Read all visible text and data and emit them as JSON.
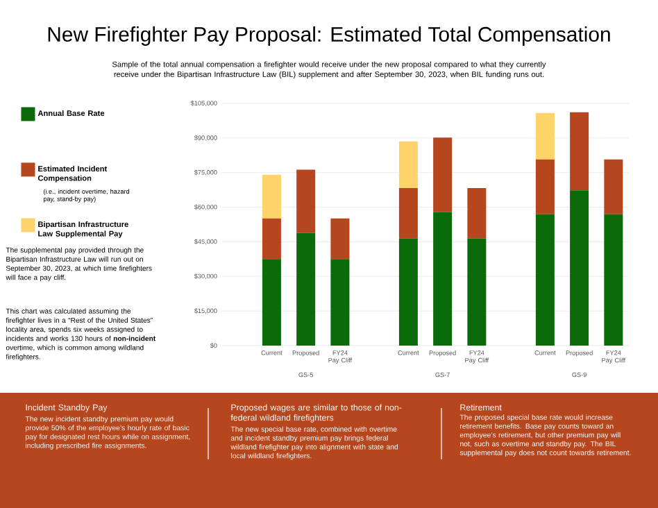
{
  "chart_data": {
    "type": "bar",
    "stacked": true,
    "title": "New Firefighter Pay Proposal: Estimated Total Compensation",
    "subtitle": "Sample of the total annual compensation a firefighter would receive under the new proposal compared to what they currently receive under the Bipartisan Infrastructure Law (BIL) supplement and after September 30, 2023, when BIL funding runs out.",
    "categories": [
      "Current",
      "Proposed",
      "FY24 Pay Cliff",
      "Current",
      "Proposed",
      "FY24 Pay Cliff",
      "Current",
      "Proposed",
      "FY24 Pay Cliff"
    ],
    "series": [
      {
        "name": "Annual Base Rate",
        "color": "#0b6b0b",
        "values": [
          37500,
          48900,
          37500,
          46500,
          57900,
          46500,
          56900,
          67300,
          56900
        ]
      },
      {
        "name": "Estimated Incident Compensation",
        "color": "#b5461e",
        "values": [
          17600,
          27400,
          17600,
          21800,
          32300,
          21800,
          23800,
          33900,
          23800
        ]
      },
      {
        "name": "Bipartisan Infrastructure Law Supplemental Pay",
        "color": "#fdd36a",
        "values": [
          19000,
          null,
          null,
          20200,
          null,
          null,
          20200,
          null,
          null
        ]
      }
    ],
    "ylim": [
      0,
      105000
    ],
    "yticks": [
      {
        "value": 0,
        "label": "$0"
      },
      {
        "value": 15000,
        "label": "$15,000"
      },
      {
        "value": 30000,
        "label": "$30,000"
      },
      {
        "value": 45000,
        "label": "$45,000"
      },
      {
        "value": 60000,
        "label": "$60,000"
      },
      {
        "value": 75000,
        "label": "$75,000"
      },
      {
        "value": 90000,
        "label": "$90,000"
      },
      {
        "value": 105000,
        "label": "$105,000"
      }
    ],
    "grid": "y",
    "legend": "left",
    "annotations": [
      "GS-5",
      "GS-7",
      "GS-9",
      "(i.e., incident overtime, hazard pay, stand-by pay)",
      "The supplemental pay provided through the Bipartisan Infrastructure Law will run out on September 30, 2023, at which time firefighters will face a pay cliff.",
      "This chart was calculated assuming the firefighter lives in a “Rest of the United States” locality area, spends six weeks assigned to incidents and works 130 hours of **non-incident** overtime, which is common among wildland firefighters.",
      "Incident Standby Pay",
      "The new incident standby premium pay would provide 50% of the employee’s hourly rate of basic pay for designated rest hours while on assignment, including prescribed fire assignments.",
      "Proposed wages are similar to those of non-federal wildland firefighters",
      "The new special base rate, combined with overtime and incident standby premium pay brings federal wildland firefighter pay into alignment with state and local wildland firefighters.",
      "Retirement",
      "The proposed special base rate would increase retirement benefits. Base pay counts toward an employee’s retirement, but other premium pay will not, such as overtime and standby pay. The BIL supplemental pay does not count towards retirement."
    ]
  }
}
